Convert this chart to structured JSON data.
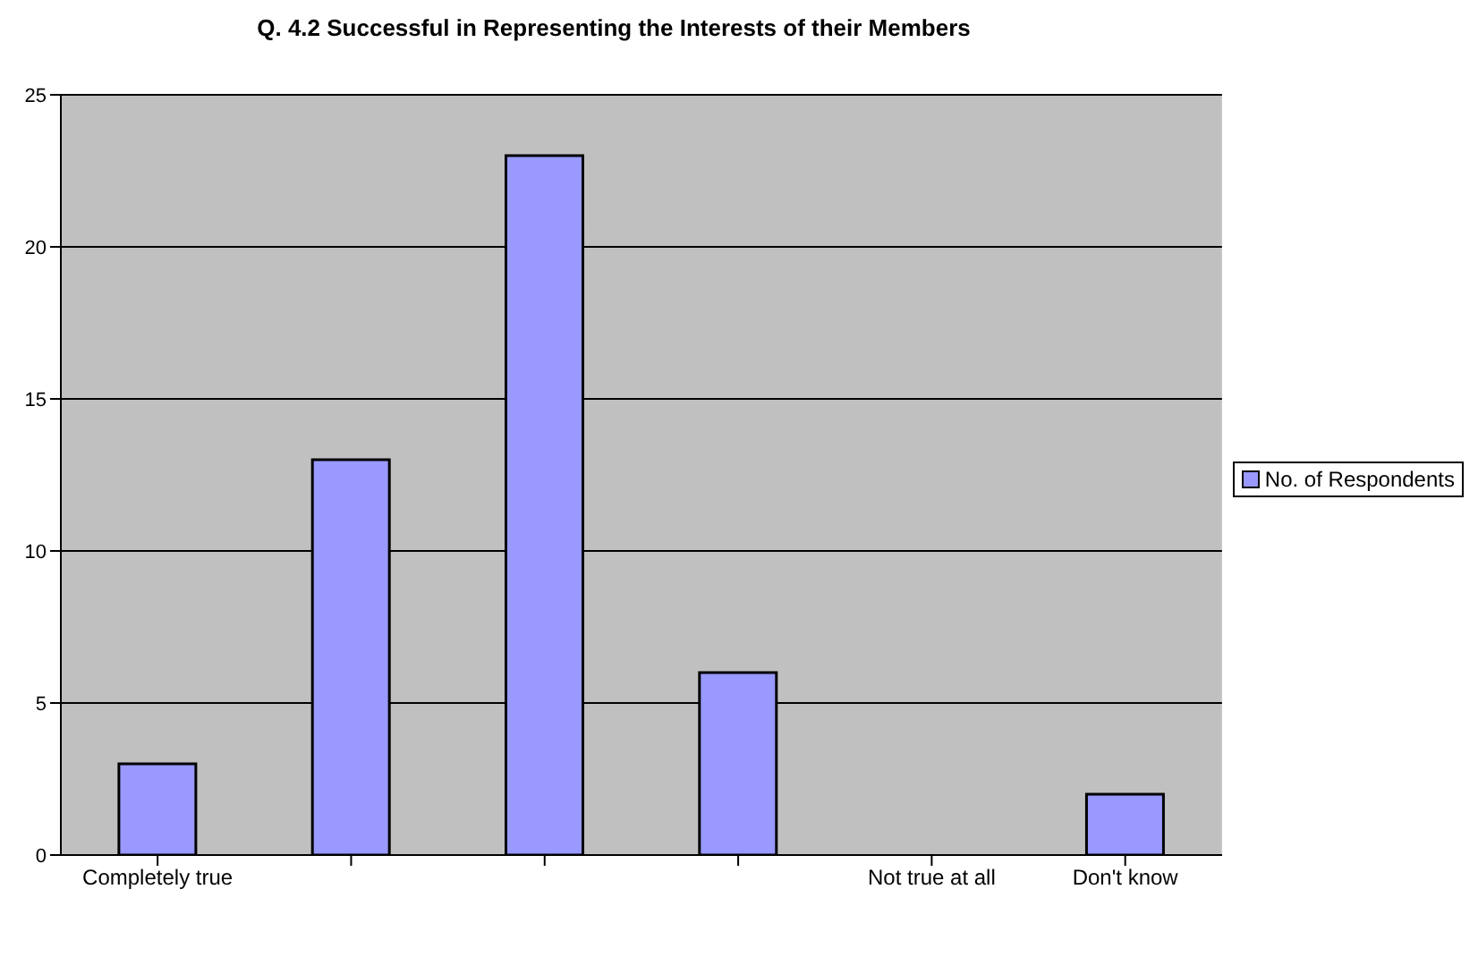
{
  "chart_data": {
    "type": "bar",
    "title": "Q. 4.2 Successful in Representing the Interests of their Members",
    "categories": [
      "Completely true",
      null,
      null,
      null,
      "Not true at all",
      "Don't know"
    ],
    "series": [
      {
        "name": "No. of Respondents",
        "color": "#9999ff",
        "values": [
          3,
          13,
          23,
          6,
          0,
          2
        ]
      }
    ],
    "ylim": [
      0,
      25
    ],
    "yticks": [
      0,
      5,
      10,
      15,
      20,
      25
    ],
    "grid": "y",
    "legend": "right"
  }
}
